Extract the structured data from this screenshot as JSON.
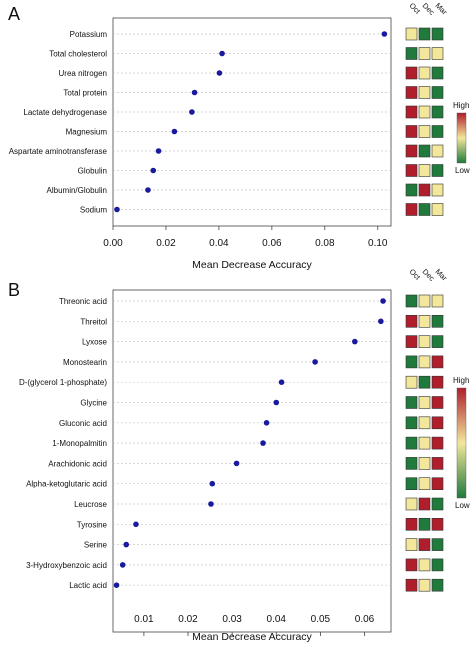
{
  "colors": {
    "high": "#b01e2c",
    "mid": "#f2e79a",
    "low": "#1f7a3b",
    "point": "#1a1a9e"
  },
  "legend": {
    "high_label": "High",
    "low_label": "Low"
  },
  "chart_data": [
    {
      "panel_label": "A",
      "type": "scatter",
      "xlabel": "Mean  Decrease  Accuracy",
      "xlim": [
        0,
        0.105
      ],
      "xticks": [
        0,
        0.02,
        0.04,
        0.06,
        0.08,
        0.1
      ],
      "xtick_labels": [
        "0.00",
        "0.02",
        "0.04",
        "0.06",
        "0.08",
        "0.10"
      ],
      "grid": "horizontal dotted",
      "categories": [
        "Potassium",
        "Total cholesterol",
        "Urea nitrogen",
        "Total protein",
        "Lactate dehydrogenase",
        "Magnesium",
        "Aspartate aminotransferase",
        "Globulin",
        "Albumin/Globulin",
        "Sodium"
      ],
      "values": [
        0.1025,
        0.0412,
        0.0402,
        0.0308,
        0.0298,
        0.0232,
        0.0172,
        0.0152,
        0.0132,
        0.0015
      ],
      "heatmap_columns": [
        "Oct",
        "Dec",
        "Mar"
      ],
      "heatmap": [
        [
          "mid",
          "low",
          "low"
        ],
        [
          "low",
          "mid",
          "mid"
        ],
        [
          "high",
          "mid",
          "low"
        ],
        [
          "high",
          "mid",
          "low"
        ],
        [
          "high",
          "mid",
          "low"
        ],
        [
          "high",
          "mid",
          "low"
        ],
        [
          "high",
          "low",
          "mid"
        ],
        [
          "high",
          "mid",
          "low"
        ],
        [
          "low",
          "high",
          "mid"
        ],
        [
          "high",
          "low",
          "mid"
        ]
      ]
    },
    {
      "panel_label": "B",
      "type": "scatter",
      "xlabel": "Mean Decrease Accuracy",
      "xlim": [
        0.003,
        0.066
      ],
      "xticks": [
        0.01,
        0.02,
        0.03,
        0.04,
        0.05,
        0.06
      ],
      "xtick_labels": [
        "0.01",
        "0.02",
        "0.03",
        "0.04",
        "0.05",
        "0.06"
      ],
      "grid": "horizontal dotted",
      "categories": [
        "Threonic acid",
        "Threitol",
        "Lyxose",
        "Monostearin",
        "D-(glycerol 1-phosphate)",
        "Glycine",
        "Gluconic acid",
        "1-Monopalmitin",
        "Arachidonic acid",
        "Alpha-ketoglutaric acid",
        "Leucrose",
        "Tyrosine",
        "Serine",
        "3-Hydroxybenzoic acid",
        "Lactic acid"
      ],
      "values": [
        0.0642,
        0.0637,
        0.0578,
        0.0488,
        0.0412,
        0.04,
        0.0378,
        0.037,
        0.031,
        0.0255,
        0.0252,
        0.0082,
        0.006,
        0.0052,
        0.0038
      ],
      "heatmap_columns": [
        "Oct",
        "Dec",
        "Mar"
      ],
      "heatmap": [
        [
          "low",
          "mid",
          "mid"
        ],
        [
          "high",
          "mid",
          "low"
        ],
        [
          "high",
          "mid",
          "low"
        ],
        [
          "low",
          "mid",
          "high"
        ],
        [
          "mid",
          "low",
          "high"
        ],
        [
          "low",
          "mid",
          "high"
        ],
        [
          "low",
          "mid",
          "high"
        ],
        [
          "low",
          "mid",
          "high"
        ],
        [
          "low",
          "mid",
          "high"
        ],
        [
          "low",
          "mid",
          "high"
        ],
        [
          "mid",
          "high",
          "low"
        ],
        [
          "high",
          "low",
          "high"
        ],
        [
          "mid",
          "high",
          "low"
        ],
        [
          "high",
          "mid",
          "low"
        ],
        [
          "high",
          "mid",
          "low"
        ]
      ]
    }
  ]
}
